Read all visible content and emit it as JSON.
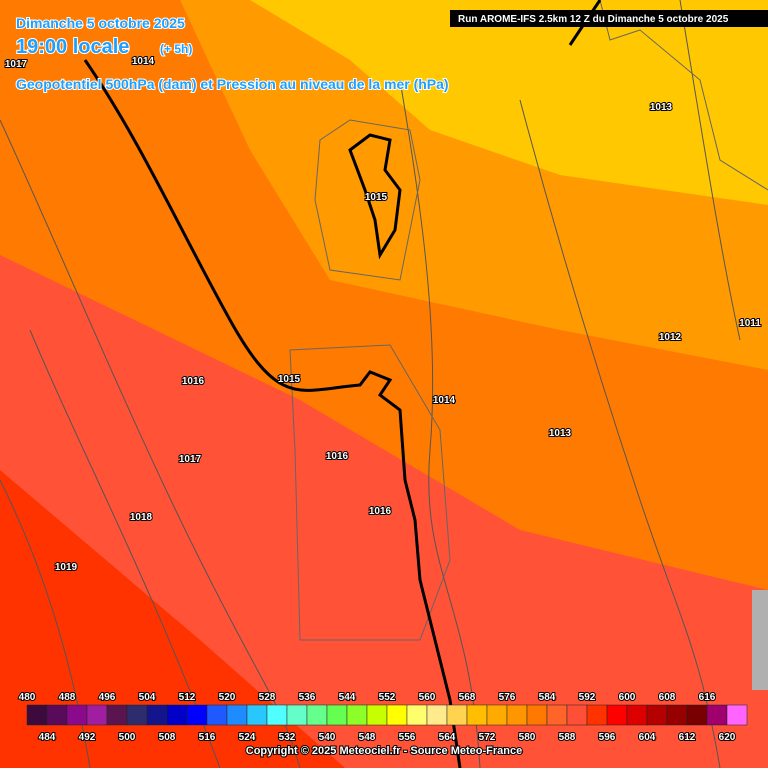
{
  "header": {
    "date": "Dimanche 5 octobre 2025",
    "time": "19:00 locale",
    "offset": "(+ 5h)",
    "subtitle": "Geopotentiel 500hPa (dam) et Pression au niveau de la mer (hPa)",
    "run": "Run AROME-IFS 2.5km 12 Z du Dimanche 5 octobre 2025"
  },
  "isobar_labels": [
    1017,
    1014,
    1013,
    1015,
    1012,
    1011,
    1016,
    1015,
    1014,
    1013,
    1017,
    1016,
    1018,
    1016,
    1019
  ],
  "colorbar": {
    "values": [
      480,
      484,
      488,
      492,
      496,
      500,
      504,
      508,
      512,
      516,
      520,
      524,
      528,
      532,
      536,
      540,
      544,
      548,
      552,
      556,
      560,
      564,
      568,
      572,
      576,
      580,
      584,
      588,
      592,
      596,
      600,
      604,
      608,
      612,
      616,
      620
    ],
    "colors": [
      "#3c0a3c",
      "#5a0a5a",
      "#8b0a8b",
      "#a01ea0",
      "#5a1450",
      "#2d2d6e",
      "#14148c",
      "#0000c8",
      "#0000ff",
      "#1e5aff",
      "#1e8cff",
      "#28c8ff",
      "#50ffff",
      "#64ffc8",
      "#64ff8c",
      "#64ff50",
      "#8cff28",
      "#c8ff00",
      "#ffff00",
      "#ffff6e",
      "#ffeb8c",
      "#ffd250",
      "#ffbe00",
      "#ffaa00",
      "#ff9600",
      "#ff7800",
      "#ff6428",
      "#ff5037",
      "#ff3200",
      "#ff0000",
      "#dc0000",
      "#b40000",
      "#960000",
      "#780000",
      "#a0006e",
      "#ff64ff"
    ]
  },
  "copyright": "Copyright © 2025 Meteociel.fr - Source Meteo-France"
}
